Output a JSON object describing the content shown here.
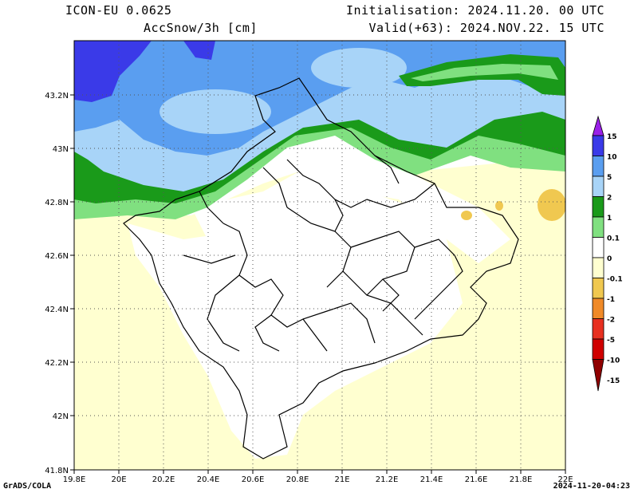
{
  "header": {
    "model": "ICON-EU 0.0625",
    "field": "AccSnow/3h [cm]",
    "init": "Initialisation: 2024.11.20. 00 UTC",
    "valid": "Valid(+63): 2024.NOV.22. 15 UTC"
  },
  "footer": {
    "left": "GrADS/COLA",
    "right": "2024-11-20-04:23"
  },
  "map": {
    "lon_range": [
      19.8,
      22.0
    ],
    "lat_range": [
      41.8,
      43.4
    ],
    "lat_ticks": [
      "41.8N",
      "42N",
      "42.2N",
      "42.4N",
      "42.6N",
      "42.8N",
      "43N",
      "43.2N"
    ],
    "lon_ticks": [
      "19.8E",
      "20E",
      "20.2E",
      "20.4E",
      "20.6E",
      "20.8E",
      "21E",
      "21.2E",
      "21.4E",
      "21.6E",
      "21.8E",
      "22E"
    ],
    "grid": "dotted"
  },
  "colorbar": {
    "labels": [
      "15",
      "10",
      "5",
      "2",
      "1",
      "0.1",
      "0",
      "-0.1",
      "-1",
      "-2",
      "-5",
      "-10",
      "-15"
    ],
    "colors": [
      "#9a20e8",
      "#3a3ae8",
      "#5a9ef0",
      "#a8d4f8",
      "#1a9a1a",
      "#80e080",
      "#ffffff",
      "#ffffd0",
      "#f0c850",
      "#f08a28",
      "#e83020",
      "#d00000",
      "#900000"
    ]
  },
  "colors": {
    "deep_blue": "#3a3ae8",
    "mid_blue": "#5a9ef0",
    "light_blue": "#a8d4f8",
    "dark_green": "#1a9a1a",
    "light_green": "#80e080",
    "pale_yellow": "#ffffd0",
    "orange_yellow": "#f0c850"
  }
}
